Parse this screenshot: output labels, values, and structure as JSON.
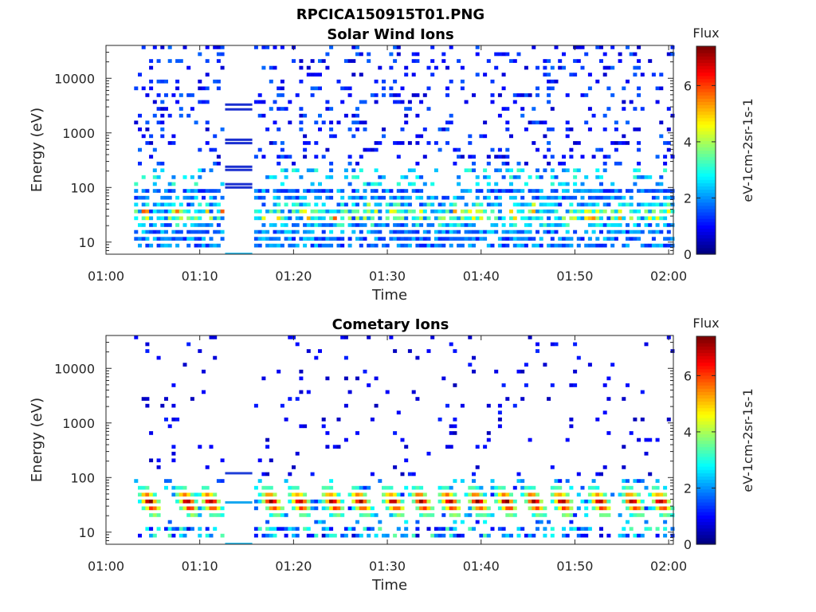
{
  "figure": {
    "suptitle": "RPCICA150915T01.PNG"
  },
  "chart_data": [
    {
      "type": "heatmap",
      "title": "Solar Wind Ions",
      "xlabel": "Time",
      "ylabel": "Energy (eV)",
      "x_ticks": [
        "01:00",
        "01:10",
        "01:20",
        "01:30",
        "01:40",
        "01:50",
        "02:00"
      ],
      "x_range_minutes": [
        0,
        60.5
      ],
      "y_scale": "log",
      "y_ticks": [
        "10",
        "100",
        "1000",
        "10000"
      ],
      "y_range": [
        6,
        40000
      ],
      "data_start_minute": 3,
      "data_gap_minutes": [
        12.5,
        15.8
      ],
      "colorbar": {
        "title": "Flux",
        "label": "eV-1cm-2sr-1s-1",
        "range": [
          0,
          7.4
        ],
        "ticks": [
          "0",
          "2",
          "4",
          "6"
        ],
        "colormap": "jet"
      },
      "grid": false,
      "intensity_peak_energy_eV": 30,
      "intensity_peak_value": 5.5,
      "gap_line_energies_eV": [
        3300,
        2700,
        750,
        650,
        240,
        210,
        115,
        100
      ]
    },
    {
      "type": "heatmap",
      "title": "Cometary Ions",
      "xlabel": "Time",
      "ylabel": "Energy (eV)",
      "x_ticks": [
        "01:00",
        "01:10",
        "01:20",
        "01:30",
        "01:40",
        "01:50",
        "02:00"
      ],
      "x_range_minutes": [
        0,
        60.5
      ],
      "y_scale": "log",
      "y_ticks": [
        "10",
        "100",
        "1000",
        "10000"
      ],
      "y_range": [
        6,
        40000
      ],
      "data_start_minute": 3,
      "data_gap_minutes": [
        12.5,
        15.8
      ],
      "colorbar": {
        "title": "Flux",
        "label": "eV-1cm-2sr-1s-1",
        "range": [
          0,
          7.4
        ],
        "ticks": [
          "0",
          "2",
          "4",
          "6"
        ],
        "colormap": "jet"
      },
      "grid": false,
      "intensity_peak_energy_eV": 25,
      "intensity_peak_value": 7,
      "burst_minutes": [
        4.5,
        8.5,
        11,
        17.5,
        20.5,
        24,
        27,
        30.5,
        33.5,
        36.5,
        39.5,
        42.5,
        45.5,
        48.5,
        52.5,
        56,
        59
      ],
      "gap_line_energies_eV": [
        120,
        35
      ]
    }
  ]
}
